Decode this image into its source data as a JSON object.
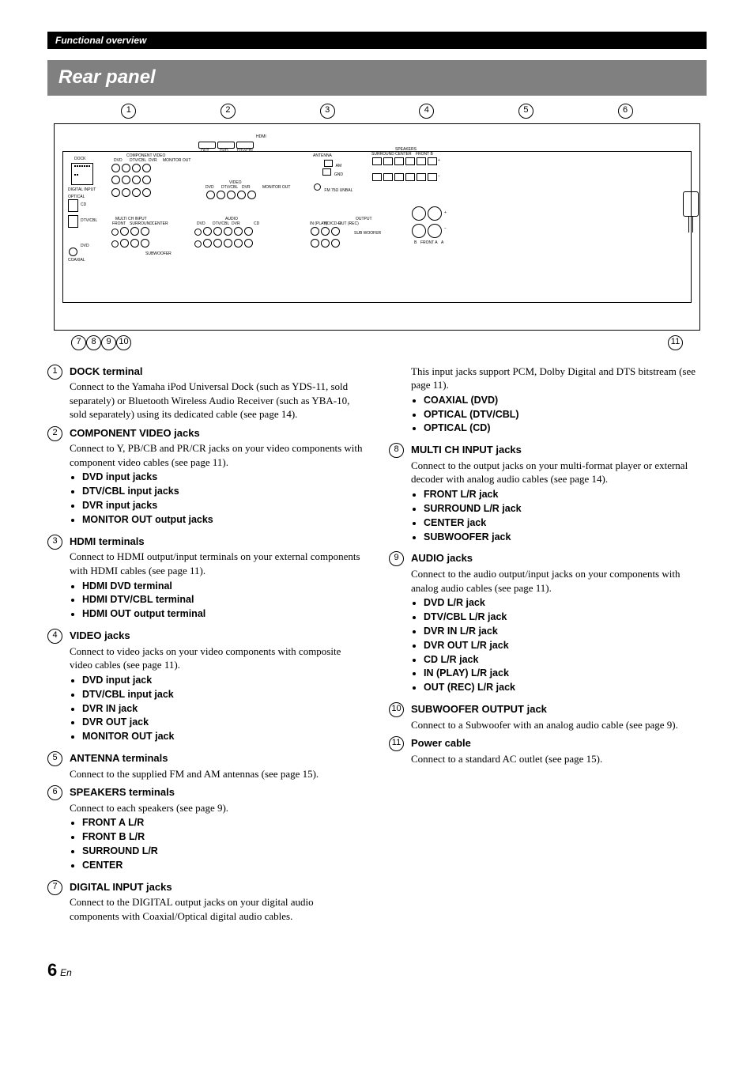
{
  "header_bar": "Functional overview",
  "title_bar": "Rear panel",
  "callouts_top": [
    "1",
    "2",
    "3",
    "4",
    "5",
    "6"
  ],
  "callouts_bottom": [
    "7",
    "8",
    "9",
    "10",
    "11"
  ],
  "panel_labels": {
    "dock": "DOCK",
    "component": "COMPONENT VIDEO",
    "digital": "DIGITAL INPUT",
    "optical": "OPTICAL",
    "coaxial": "COAXIAL",
    "cd": "CD",
    "dtvcbl": "DTV/CBL",
    "dvd": "DVD",
    "hdmi": "HDMI",
    "out": "OUT",
    "video": "VIDEO",
    "monitorout": "MONITOR OUT",
    "dvr": "DVR",
    "in": "IN",
    "multich": "MULTI CH INPUT",
    "front": "FRONT",
    "surround": "SURROUND",
    "center": "CENTER",
    "subwoofer": "SUBWOOFER",
    "audio": "AUDIO",
    "inplay": "IN (PLAY)",
    "mdcdr": "MD/CD-R",
    "outrec": "OUT (REC)",
    "output": "OUTPUT",
    "subwooferout": "SUB WOOFER",
    "antenna": "ANTENNA",
    "am": "AM",
    "gnd": "GND",
    "fm": "FM 75Ω UNBAL",
    "speakers": "SPEAKERS",
    "surroundsp": "SURROUND",
    "centersp": "CENTER",
    "frontb": "FRONT B",
    "fronta": "FRONT A",
    "plus": "+",
    "minus": "−",
    "a": "A",
    "b": "B",
    "imp": "⊖"
  },
  "left_col": [
    {
      "n": "1",
      "h": "DOCK terminal",
      "d": "Connect to the Yamaha iPod Universal Dock (such as YDS-11, sold separately) or Bluetooth Wireless Audio Receiver (such as YBA-10, sold separately) using its dedicated cable (see page 14)."
    },
    {
      "n": "2",
      "h": "COMPONENT VIDEO jacks",
      "d": "Connect to Y, PB/CB and PR/CR jacks on your video components with component video cables (see page 11).",
      "b": [
        "DVD input jacks",
        "DTV/CBL input jacks",
        "DVR input jacks",
        "MONITOR OUT output jacks"
      ]
    },
    {
      "n": "3",
      "h": "HDMI terminals",
      "d": "Connect to HDMI output/input terminals on your external components with HDMI cables (see page 11).",
      "b": [
        "HDMI DVD terminal",
        "HDMI DTV/CBL terminal",
        "HDMI OUT output terminal"
      ]
    },
    {
      "n": "4",
      "h": "VIDEO jacks",
      "d": "Connect to video jacks on your video components with composite video cables (see page 11).",
      "b": [
        "DVD input jack",
        "DTV/CBL input jack",
        "DVR IN jack",
        "DVR OUT jack",
        "MONITOR OUT jack"
      ]
    },
    {
      "n": "5",
      "h": "ANTENNA terminals",
      "d": "Connect to the supplied FM and AM antennas (see page 15)."
    },
    {
      "n": "6",
      "h": "SPEAKERS terminals",
      "d": "Connect to each speakers (see page 9).",
      "b": [
        "FRONT A L/R",
        "FRONT B L/R",
        "SURROUND L/R",
        "CENTER"
      ]
    },
    {
      "n": "7",
      "h": "DIGITAL INPUT jacks",
      "d": "Connect to the DIGITAL output jacks on your digital audio components with Coaxial/Optical digital audio cables."
    }
  ],
  "right_col_pre": {
    "d": "This input jacks support PCM, Dolby Digital and DTS bitstream (see page 11).",
    "b": [
      "COAXIAL (DVD)",
      "OPTICAL (DTV/CBL)",
      "OPTICAL (CD)"
    ]
  },
  "right_col": [
    {
      "n": "8",
      "h": "MULTI CH INPUT jacks",
      "d": "Connect to the output jacks on your multi-format player or external decoder with analog audio cables (see page 14).",
      "b": [
        "FRONT L/R jack",
        "SURROUND L/R jack",
        "CENTER jack",
        "SUBWOOFER jack"
      ]
    },
    {
      "n": "9",
      "h": "AUDIO jacks",
      "d": "Connect to the audio output/input jacks on your components with analog audio cables (see page 11).",
      "b": [
        "DVD L/R jack",
        "DTV/CBL L/R jack",
        "DVR IN L/R jack",
        "DVR OUT L/R jack",
        "CD L/R jack",
        "IN (PLAY) L/R jack",
        "OUT (REC) L/R jack"
      ]
    },
    {
      "n": "10",
      "h": "SUBWOOFER OUTPUT jack",
      "d": "Connect to a Subwoofer with an analog audio cable (see page 9)."
    },
    {
      "n": "11",
      "h": "Power cable",
      "d": "Connect to a standard AC outlet (see page 15)."
    }
  ],
  "page_number": "6",
  "lang": "En"
}
